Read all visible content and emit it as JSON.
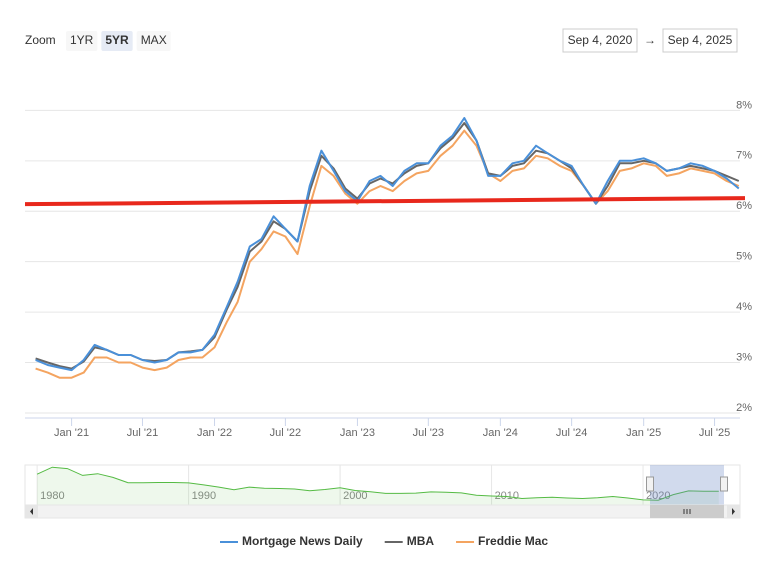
{
  "zoom": {
    "label": "Zoom",
    "buttons": [
      "1YR",
      "5YR",
      "MAX"
    ],
    "selected": 1
  },
  "range": {
    "from": "Sep 4, 2020",
    "arrow": "→",
    "to": "Sep 4, 2025"
  },
  "chart_data": {
    "type": "line",
    "x": [
      "2020-10",
      "2020-11",
      "2020-12",
      "2021-01",
      "2021-02",
      "2021-03",
      "2021-04",
      "2021-05",
      "2021-06",
      "2021-07",
      "2021-08",
      "2021-09",
      "2021-10",
      "2021-11",
      "2021-12",
      "2022-01",
      "2022-02",
      "2022-03",
      "2022-04",
      "2022-05",
      "2022-06",
      "2022-07",
      "2022-08",
      "2022-09",
      "2022-10",
      "2022-11",
      "2022-12",
      "2023-01",
      "2023-02",
      "2023-03",
      "2023-04",
      "2023-05",
      "2023-06",
      "2023-07",
      "2023-08",
      "2023-09",
      "2023-10",
      "2023-11",
      "2023-12",
      "2024-01",
      "2024-02",
      "2024-03",
      "2024-04",
      "2024-05",
      "2024-06",
      "2024-07",
      "2024-08",
      "2024-09",
      "2024-10",
      "2024-11",
      "2024-12",
      "2025-01",
      "2025-02",
      "2025-03",
      "2025-04",
      "2025-05",
      "2025-06",
      "2025-07",
      "2025-08",
      "2025-09"
    ],
    "series": [
      {
        "name": "Mortgage News Daily",
        "color": "#4a90d9",
        "values": [
          3.05,
          2.95,
          2.9,
          2.85,
          3.05,
          3.35,
          3.25,
          3.15,
          3.15,
          3.05,
          3.0,
          3.05,
          3.2,
          3.2,
          3.25,
          3.55,
          4.1,
          4.6,
          5.3,
          5.45,
          5.9,
          5.65,
          5.4,
          6.5,
          7.2,
          6.8,
          6.4,
          6.2,
          6.6,
          6.7,
          6.5,
          6.8,
          6.95,
          6.95,
          7.3,
          7.5,
          7.85,
          7.4,
          6.7,
          6.7,
          6.95,
          7.0,
          7.3,
          7.15,
          7.0,
          6.9,
          6.5,
          6.15,
          6.6,
          7.0,
          7.0,
          7.05,
          6.95,
          6.8,
          6.85,
          6.95,
          6.9,
          6.8,
          6.65,
          6.45
        ]
      },
      {
        "name": "MBA",
        "color": "#666666",
        "values": [
          3.08,
          3.0,
          2.93,
          2.88,
          3.02,
          3.3,
          3.25,
          3.15,
          3.15,
          3.05,
          3.03,
          3.05,
          3.2,
          3.22,
          3.25,
          3.5,
          4.05,
          4.5,
          5.2,
          5.4,
          5.8,
          5.65,
          5.4,
          6.4,
          7.1,
          6.85,
          6.45,
          6.25,
          6.55,
          6.65,
          6.55,
          6.75,
          6.9,
          6.95,
          7.25,
          7.45,
          7.75,
          7.4,
          6.75,
          6.7,
          6.9,
          6.95,
          7.2,
          7.15,
          7.0,
          6.85,
          6.5,
          6.15,
          6.5,
          6.95,
          6.95,
          7.0,
          6.95,
          6.8,
          6.85,
          6.9,
          6.85,
          6.8,
          6.7,
          6.6
        ]
      },
      {
        "name": "Freddie Mac",
        "color": "#f4a460",
        "values": [
          2.88,
          2.8,
          2.7,
          2.7,
          2.8,
          3.1,
          3.1,
          3.0,
          3.0,
          2.9,
          2.85,
          2.9,
          3.05,
          3.1,
          3.1,
          3.3,
          3.8,
          4.2,
          5.0,
          5.25,
          5.6,
          5.5,
          5.15,
          6.1,
          6.9,
          6.7,
          6.35,
          6.15,
          6.4,
          6.5,
          6.4,
          6.6,
          6.75,
          6.8,
          7.1,
          7.3,
          7.6,
          7.3,
          6.75,
          6.6,
          6.8,
          6.85,
          7.1,
          7.05,
          6.9,
          6.8,
          6.5,
          6.15,
          6.4,
          6.8,
          6.85,
          6.95,
          6.9,
          6.7,
          6.75,
          6.85,
          6.8,
          6.75,
          6.6,
          6.5
        ]
      }
    ],
    "xlim": [
      "2020-09-04",
      "2025-09-04"
    ],
    "xticks": [
      {
        "value": "2021-01",
        "label": "Jan '21"
      },
      {
        "value": "2021-07",
        "label": "Jul '21"
      },
      {
        "value": "2022-01",
        "label": "Jan '22"
      },
      {
        "value": "2022-07",
        "label": "Jul '22"
      },
      {
        "value": "2023-01",
        "label": "Jan '23"
      },
      {
        "value": "2023-07",
        "label": "Jul '23"
      },
      {
        "value": "2024-01",
        "label": "Jan '24"
      },
      {
        "value": "2024-07",
        "label": "Jul '24"
      },
      {
        "value": "2025-01",
        "label": "Jan '25"
      },
      {
        "value": "2025-07",
        "label": "Jul '25"
      }
    ],
    "ylim": [
      1.9,
      8.9
    ],
    "yticks": [
      {
        "value": 2,
        "label": "2%"
      },
      {
        "value": 3,
        "label": "3%"
      },
      {
        "value": 4,
        "label": "4%"
      },
      {
        "value": 5,
        "label": "5%"
      },
      {
        "value": 6,
        "label": "6%"
      },
      {
        "value": 7,
        "label": "7%"
      },
      {
        "value": 8,
        "label": "8%"
      }
    ],
    "grid": true,
    "annotation_line": {
      "color": "#e8281c",
      "values": [
        6.14,
        6.26
      ]
    }
  },
  "navigator": {
    "color": "#55bb44",
    "x": [
      1980,
      1981,
      1982,
      1983,
      1984,
      1985,
      1986,
      1987,
      1988,
      1989,
      1990,
      1991,
      1992,
      1993,
      1994,
      1995,
      1996,
      1997,
      1998,
      1999,
      2000,
      2001,
      2002,
      2003,
      2004,
      2005,
      2006,
      2007,
      2008,
      2009,
      2010,
      2011,
      2012,
      2013,
      2014,
      2015,
      2016,
      2017,
      2018,
      2019,
      2020,
      2021,
      2022,
      2023,
      2024,
      2025
    ],
    "values": [
      13.7,
      16.6,
      16.0,
      13.2,
      13.9,
      12.4,
      10.2,
      10.2,
      10.3,
      10.3,
      10.1,
      9.3,
      8.4,
      7.3,
      8.4,
      7.9,
      7.8,
      7.6,
      6.9,
      7.4,
      8.1,
      7.0,
      6.5,
      5.8,
      5.8,
      5.9,
      6.4,
      6.3,
      6.0,
      5.0,
      4.7,
      4.5,
      3.7,
      4.0,
      4.2,
      3.9,
      3.7,
      4.0,
      4.5,
      3.9,
      3.1,
      3.0,
      5.3,
      6.8,
      6.7,
      6.7
    ],
    "xlim": [
      1979.2,
      2026.4
    ],
    "ylim": [
      1,
      17.5
    ],
    "xticks": [
      1980,
      1990,
      2000,
      2010,
      2020
    ]
  }
}
